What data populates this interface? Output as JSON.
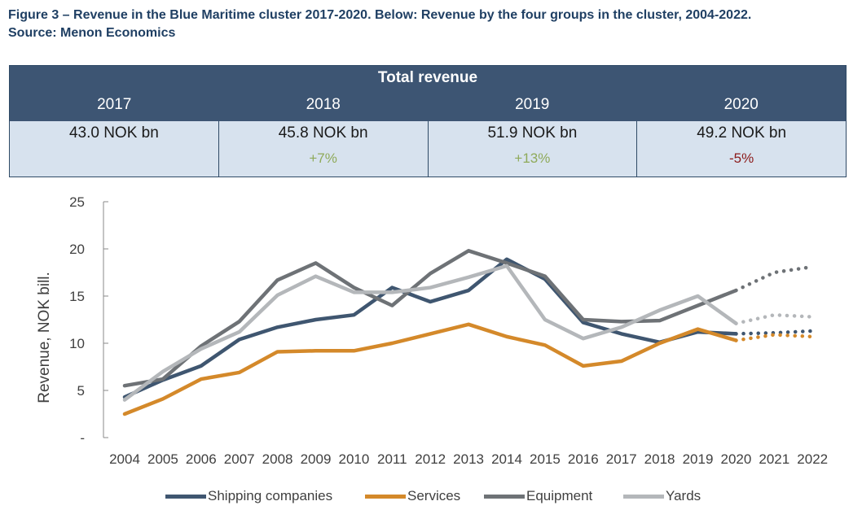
{
  "caption": {
    "line1": "Figure 3 – Revenue in the Blue Maritime cluster 2017-2020. Below: Revenue by the four groups in the cluster, 2004-2022.",
    "line2": "Source: Menon Economics"
  },
  "table": {
    "title": "Total revenue",
    "years": [
      "2017",
      "2018",
      "2019",
      "2020"
    ],
    "values": [
      "43.0 NOK bn",
      "45.8 NOK bn",
      "51.9 NOK bn",
      "49.2 NOK bn"
    ],
    "changes": [
      "",
      "+7%",
      "+13%",
      "-5%"
    ],
    "colors": {
      "header_bg": "#3d5573",
      "body_bg": "#d7e2ee",
      "positive": "#8faa5a",
      "negative": "#8b1a1a"
    }
  },
  "chart_data": {
    "type": "line",
    "x": [
      2004,
      2005,
      2006,
      2007,
      2008,
      2009,
      2010,
      2011,
      2012,
      2013,
      2014,
      2015,
      2016,
      2017,
      2018,
      2019,
      2020,
      2021,
      2022
    ],
    "ylabel": "Revenue, NOK bill.",
    "ylim": [
      0,
      25
    ],
    "yticks": [
      "-",
      "5",
      "10",
      "15",
      "20",
      "25"
    ],
    "forecast_from": 2020,
    "series": [
      {
        "name": "Shipping companies",
        "color": "#3f5670",
        "values": [
          4.3,
          6.1,
          7.6,
          10.4,
          11.7,
          12.5,
          13.0,
          15.9,
          14.4,
          15.6,
          18.9,
          16.8,
          12.2,
          11.0,
          10.1,
          11.2,
          11.0,
          11.1,
          11.3
        ]
      },
      {
        "name": "Services",
        "color": "#d4892a",
        "values": [
          2.5,
          4.1,
          6.2,
          6.9,
          9.1,
          9.2,
          9.2,
          10.0,
          11.0,
          12.0,
          10.7,
          9.8,
          7.6,
          8.1,
          10.0,
          11.5,
          10.3,
          10.9,
          10.7
        ]
      },
      {
        "name": "Equipment",
        "color": "#6e7276",
        "values": [
          5.5,
          6.2,
          9.7,
          12.3,
          16.7,
          18.5,
          15.9,
          14.0,
          17.4,
          19.8,
          18.5,
          17.1,
          12.5,
          12.3,
          12.4,
          14.0,
          15.6,
          17.5,
          18.1
        ]
      },
      {
        "name": "Yards",
        "color": "#b4b7ba",
        "values": [
          4.0,
          7.0,
          9.4,
          11.2,
          15.1,
          17.1,
          15.4,
          15.4,
          15.9,
          17.0,
          18.2,
          12.5,
          10.5,
          11.7,
          13.5,
          15.0,
          12.1,
          13.0,
          12.8
        ]
      }
    ]
  }
}
